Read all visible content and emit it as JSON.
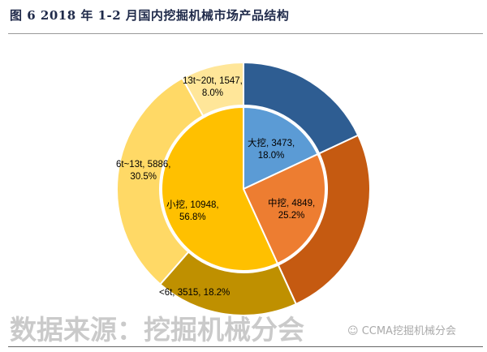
{
  "title": "图 6   2018 年 1-2 月国内挖掘机械市场产品结构",
  "watermark": "数据来源：挖掘机械分会",
  "source_logo": "CCMA挖掘机械分会",
  "chart_data": {
    "type": "pie",
    "variant": "nested-donut",
    "start": "12 o'clock",
    "direction": "clockwise",
    "inner": [
      {
        "name": "大挖",
        "value": 3473,
        "percent": "18.0%",
        "color": "#5b9bd5"
      },
      {
        "name": "中挖",
        "value": 4849,
        "percent": "25.2%",
        "color": "#ed7d31"
      },
      {
        "name": "小挖",
        "value": 10948,
        "percent": "56.8%",
        "color": "#ffc000"
      }
    ],
    "outer": [
      {
        "name": "",
        "value": 3473,
        "percent": "",
        "color": "#2e5d92"
      },
      {
        "name": "",
        "value": 4849,
        "percent": "",
        "color": "#c55a11"
      },
      {
        "name": "<6t",
        "value": 3515,
        "percent": "18.2%",
        "color": "#bf9000"
      },
      {
        "name": "6t~13t",
        "value": 5886,
        "percent": "30.5%",
        "color": "#ffd966"
      },
      {
        "name": "13t~20t",
        "value": 1547,
        "percent": "8.0%",
        "color": "#ffe699"
      }
    ],
    "labels": {
      "inner0": [
        "大挖, 3473,",
        "18.0%"
      ],
      "inner1": [
        "中挖, 4849,",
        "25.2%"
      ],
      "inner2": [
        "小挖, 10948,",
        "56.8%"
      ],
      "outer2": [
        "<6t, 3515, 18.2%"
      ],
      "outer3": [
        "6t~13t, 5886,",
        "30.5%"
      ],
      "outer4": [
        "13t~20t, 1547,",
        "8.0%"
      ]
    }
  }
}
